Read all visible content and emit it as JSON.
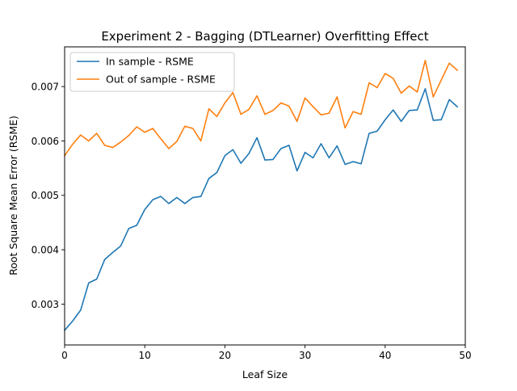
{
  "chart_data": {
    "type": "line",
    "title": "Experiment 2 - Bagging (DTLearner) Overfitting Effect",
    "xlabel": "Leaf Size",
    "ylabel": "Root Square Mean Error (RSME)",
    "xlim": [
      0,
      50
    ],
    "ylim": [
      0.00225,
      0.00773
    ],
    "xticks": [
      0,
      10,
      20,
      30,
      40,
      50
    ],
    "xtick_labels": [
      "0",
      "10",
      "20",
      "30",
      "40",
      "50"
    ],
    "yticks": [
      0.003,
      0.004,
      0.005,
      0.006,
      0.007
    ],
    "ytick_labels": [
      "0.003",
      "0.004",
      "0.005",
      "0.006",
      "0.007"
    ],
    "grid": false,
    "legend_position": "top-left",
    "x": [
      0,
      1,
      2,
      3,
      4,
      5,
      6,
      7,
      8,
      9,
      10,
      11,
      12,
      13,
      14,
      15,
      16,
      17,
      18,
      19,
      20,
      21,
      22,
      23,
      24,
      25,
      26,
      27,
      28,
      29,
      30,
      31,
      32,
      33,
      34,
      35,
      36,
      37,
      38,
      39,
      40,
      41,
      42,
      43,
      44,
      45,
      46,
      47,
      48,
      49
    ],
    "series": [
      {
        "name": "In sample - RSME",
        "color": "#1f77b4",
        "values": [
          0.00252,
          0.00269,
          0.00289,
          0.00339,
          0.00346,
          0.00382,
          0.00395,
          0.00407,
          0.00439,
          0.00445,
          0.00474,
          0.00492,
          0.00498,
          0.00485,
          0.00496,
          0.00485,
          0.00496,
          0.00498,
          0.00531,
          0.00542,
          0.00573,
          0.00584,
          0.00559,
          0.00577,
          0.00606,
          0.00565,
          0.00566,
          0.00586,
          0.00592,
          0.00545,
          0.00579,
          0.00569,
          0.00595,
          0.00569,
          0.00591,
          0.00557,
          0.00562,
          0.00558,
          0.00614,
          0.00618,
          0.00639,
          0.00657,
          0.00636,
          0.00656,
          0.00657,
          0.00696,
          0.00638,
          0.00639,
          0.00676,
          0.00663
        ]
      },
      {
        "name": "Out of sample - RSME",
        "color": "#ff7f0e",
        "values": [
          0.00573,
          0.00594,
          0.00611,
          0.006,
          0.00614,
          0.00592,
          0.00588,
          0.00598,
          0.0061,
          0.00626,
          0.00616,
          0.00623,
          0.00604,
          0.00586,
          0.00599,
          0.00627,
          0.00623,
          0.006,
          0.00659,
          0.00645,
          0.0067,
          0.00689,
          0.00649,
          0.00658,
          0.00683,
          0.00649,
          0.00656,
          0.0067,
          0.00664,
          0.00636,
          0.00679,
          0.00663,
          0.00648,
          0.00651,
          0.00681,
          0.00624,
          0.00654,
          0.00649,
          0.00707,
          0.00698,
          0.00724,
          0.00715,
          0.00688,
          0.00701,
          0.0069,
          0.00748,
          0.00681,
          0.00712,
          0.00743,
          0.0073
        ]
      }
    ]
  }
}
